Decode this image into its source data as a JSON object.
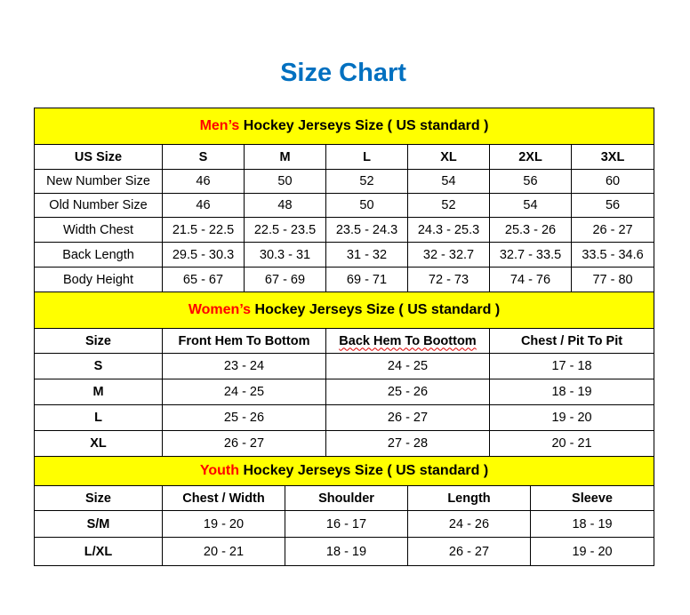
{
  "title": "Size Chart",
  "colors": {
    "title": "#0070c0",
    "section_header_bg": "#ffff00",
    "highlight": "#ff0000"
  },
  "men": {
    "heading_highlight": "Men’s",
    "heading_rest": " Hockey Jerseys Size ( US standard )",
    "columns": [
      "US Size",
      "S",
      "M",
      "L",
      "XL",
      "2XL",
      "3XL"
    ],
    "rows": [
      [
        "New Number Size",
        "46",
        "50",
        "52",
        "54",
        "56",
        "60"
      ],
      [
        "Old Number Size",
        "46",
        "48",
        "50",
        "52",
        "54",
        "56"
      ],
      [
        "Width Chest",
        "21.5 - 22.5",
        "22.5 - 23.5",
        "23.5 - 24.3",
        "24.3 - 25.3",
        "25.3 - 26",
        "26 - 27"
      ],
      [
        "Back Length",
        "29.5 - 30.3",
        "30.3 - 31",
        "31 - 32",
        "32 - 32.7",
        "32.7 - 33.5",
        "33.5 - 34.6"
      ],
      [
        "Body Height",
        "65 - 67",
        "67 - 69",
        "69 - 71",
        "72 - 73",
        "74 - 76",
        "77 - 80"
      ]
    ]
  },
  "women": {
    "heading_highlight": "Women’s",
    "heading_rest": " Hockey Jerseys Size ( US standard )",
    "columns": [
      "Size",
      "Front Hem To Bottom",
      "Back Hem To Boottom",
      "Chest / Pit To Pit"
    ],
    "rows": [
      [
        "S",
        "23 - 24",
        "24 - 25",
        "17 - 18"
      ],
      [
        "M",
        "24 - 25",
        "25 - 26",
        "18 - 19"
      ],
      [
        "L",
        "25 - 26",
        "26 - 27",
        "19 - 20"
      ],
      [
        "XL",
        "26 - 27",
        "27 - 28",
        "20 - 21"
      ]
    ]
  },
  "youth": {
    "heading_highlight": "Youth",
    "heading_rest": " Hockey Jerseys Size ( US standard )",
    "columns": [
      "Size",
      "Chest / Width",
      "Shoulder",
      "Length",
      "Sleeve"
    ],
    "rows": [
      [
        "S/M",
        "19 - 20",
        "16 - 17",
        "24 - 26",
        "18 - 19"
      ],
      [
        "L/XL",
        "20 - 21",
        "18 - 19",
        "26 - 27",
        "19 - 20"
      ]
    ]
  }
}
